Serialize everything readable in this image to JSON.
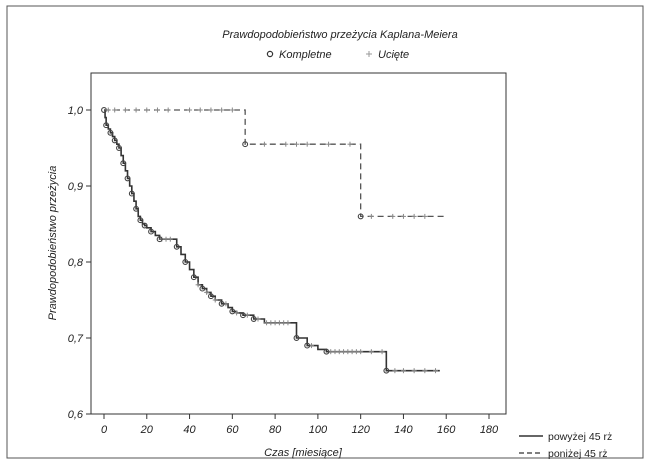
{
  "chart_data": {
    "type": "line",
    "title": "Prawdopodobieństwo przeżycia Kaplana-Meiera",
    "xlabel": "Czas [miesiące]",
    "ylabel": "Prawdopodobieństwo przeżycia",
    "xlim": [
      0,
      180
    ],
    "ylim": [
      0.6,
      1.0
    ],
    "xticks": [
      "0",
      "20",
      "40",
      "60",
      "80",
      "100",
      "120",
      "140",
      "160",
      "180"
    ],
    "yticks": [
      "0,6",
      "0,7",
      "0,8",
      "0,9",
      "1,0"
    ],
    "marker_legend": [
      {
        "symbol": "o",
        "label": "Kompletne"
      },
      {
        "symbol": "+",
        "label": "Ucięte"
      }
    ],
    "series": [
      {
        "name": "powyżej 45 rż",
        "style": "solid",
        "color": "#333333",
        "x": [
          0,
          0.5,
          1,
          2,
          3,
          4,
          5,
          6,
          7,
          8,
          9,
          10,
          11,
          12,
          13,
          14,
          15,
          16,
          17,
          18,
          19,
          20,
          22,
          24,
          26,
          30,
          34,
          36,
          38,
          40,
          42,
          44,
          46,
          48,
          50,
          52,
          55,
          58,
          60,
          62,
          65,
          70,
          75,
          88,
          90,
          95,
          100,
          104,
          120,
          132,
          157
        ],
        "y": [
          1.0,
          0.99,
          0.98,
          0.975,
          0.97,
          0.965,
          0.96,
          0.955,
          0.95,
          0.94,
          0.93,
          0.92,
          0.91,
          0.9,
          0.89,
          0.88,
          0.87,
          0.86,
          0.855,
          0.85,
          0.848,
          0.845,
          0.84,
          0.835,
          0.83,
          0.83,
          0.82,
          0.81,
          0.8,
          0.79,
          0.78,
          0.77,
          0.765,
          0.76,
          0.755,
          0.75,
          0.745,
          0.74,
          0.735,
          0.733,
          0.73,
          0.725,
          0.72,
          0.72,
          0.7,
          0.69,
          0.685,
          0.682,
          0.682,
          0.657,
          0.657
        ],
        "events": [
          0,
          1,
          3,
          5,
          7,
          9,
          11,
          13,
          15,
          17,
          19,
          22,
          26,
          34,
          38,
          42,
          46,
          50,
          55,
          60,
          65,
          70,
          90,
          95,
          104,
          132
        ],
        "censored": [
          27,
          29,
          31,
          44,
          48,
          52,
          57,
          62,
          67,
          72,
          76,
          78,
          80,
          82,
          84,
          86,
          97,
          106,
          108,
          110,
          112,
          114,
          116,
          118,
          120,
          125,
          130,
          136,
          140,
          145,
          150,
          155
        ]
      },
      {
        "name": "poniżej 45 rż",
        "style": "dashed",
        "color": "#555555",
        "x": [
          0,
          66,
          120,
          159
        ],
        "y": [
          1.0,
          0.955,
          0.86,
          0.86
        ],
        "events": [
          66,
          120
        ],
        "censored": [
          2,
          5,
          10,
          15,
          20,
          25,
          30,
          40,
          45,
          50,
          55,
          60,
          75,
          85,
          90,
          95,
          105,
          115,
          125,
          135,
          140,
          145,
          150
        ]
      }
    ]
  },
  "colors": {
    "plot_frame": "#333333",
    "outer_frame": "#555555",
    "event_marker": "#444444",
    "censor_marker": "#888888"
  }
}
